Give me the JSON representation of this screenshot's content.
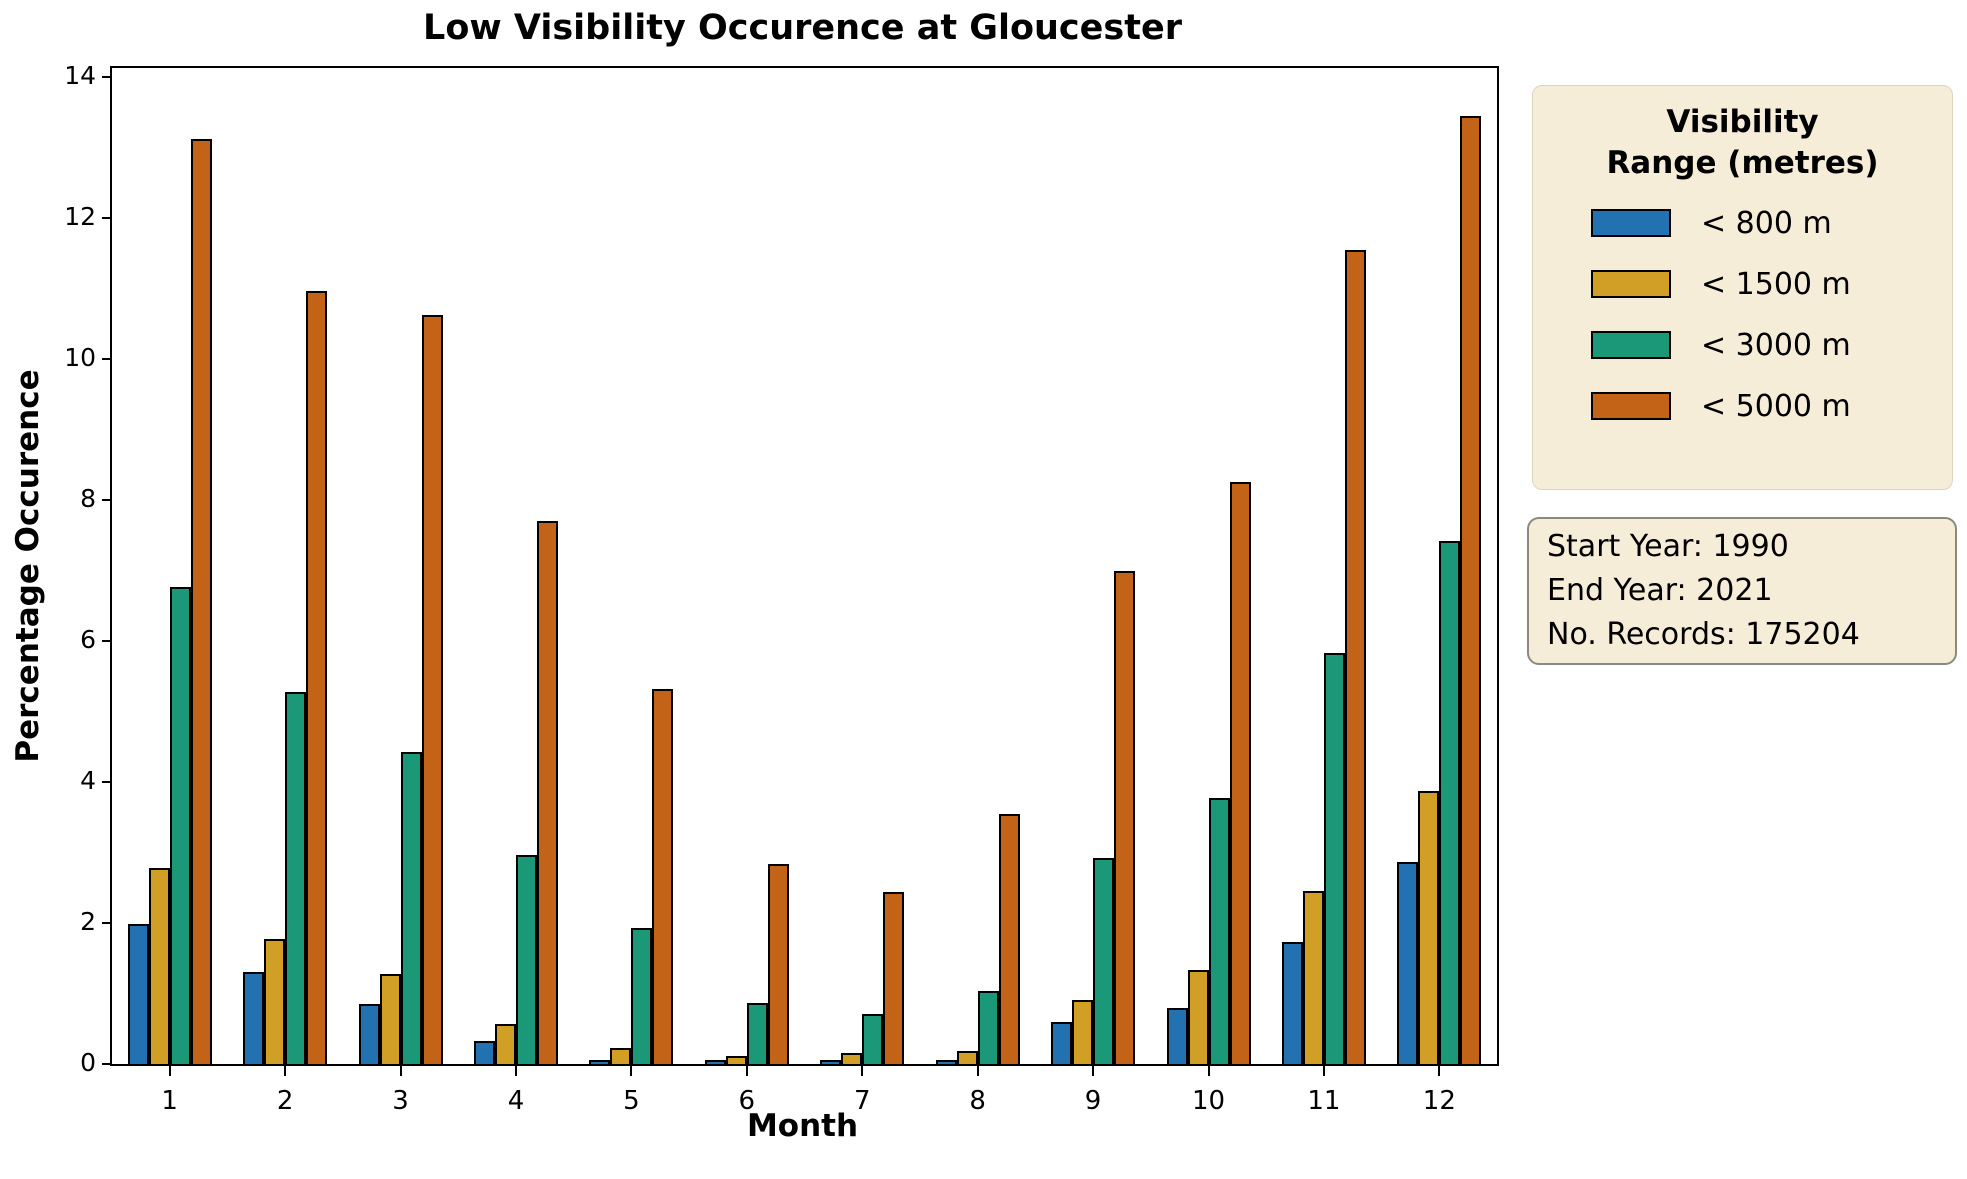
{
  "title": "Low Visibility Occurence at Gloucester",
  "chart_data": {
    "type": "bar",
    "title": "Low Visibility Occurence at Gloucester",
    "xlabel": "Month",
    "ylabel": "Percentage Occurence",
    "categories": [
      "1",
      "2",
      "3",
      "4",
      "5",
      "6",
      "7",
      "8",
      "9",
      "10",
      "11",
      "12"
    ],
    "ylim": [
      0,
      14
    ],
    "yticks": [
      0,
      2,
      4,
      6,
      8,
      10,
      12,
      14
    ],
    "grid": false,
    "legend_title": "Visibility\nRange (metres)",
    "legend_position": "right",
    "bar_edge_color": "#000000",
    "series": [
      {
        "name": "< 800 m",
        "color": "#2272B2",
        "values": [
          1.98,
          1.31,
          0.85,
          0.32,
          0.04,
          0.06,
          0.05,
          0.05,
          0.6,
          0.79,
          1.73,
          2.86
        ]
      },
      {
        "name": "< 1500 m",
        "color": "#D19E26",
        "values": [
          2.78,
          1.78,
          1.28,
          0.57,
          0.23,
          0.12,
          0.15,
          0.18,
          0.91,
          1.34,
          2.45,
          3.87
        ]
      },
      {
        "name": "< 3000 m",
        "color": "#1B9877",
        "values": [
          6.77,
          5.28,
          4.43,
          2.96,
          1.93,
          0.87,
          0.71,
          1.04,
          2.92,
          3.77,
          5.83,
          7.42
        ]
      },
      {
        "name": "< 5000 m",
        "color": "#C26318",
        "values": [
          13.12,
          10.97,
          10.62,
          7.7,
          5.32,
          2.84,
          2.44,
          3.55,
          6.99,
          8.26,
          11.54,
          13.44
        ]
      }
    ]
  },
  "legend": {
    "title": "Visibility\nRange (metres)"
  },
  "info_box": {
    "lines": [
      "Start Year: 1990",
      "End Year: 2021",
      "No. Records: 175204"
    ]
  },
  "colors": {
    "panel_background": "#F6EDD9",
    "info_border": "#8a8a80",
    "axis": "#000000"
  }
}
